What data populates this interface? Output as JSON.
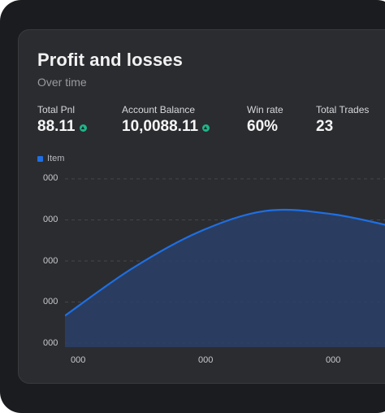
{
  "header": {
    "title": "Profit and losses",
    "subtitle": "Over time"
  },
  "stats": [
    {
      "label": "Total Pnl",
      "value": "88.11",
      "trend": "up-icon"
    },
    {
      "label": "Account Balance",
      "value": "10,0088.11",
      "trend": "up-icon"
    },
    {
      "label": "Win rate",
      "value": "60%"
    },
    {
      "label": "Total Trades",
      "value": "23"
    }
  ],
  "colors": {
    "accent": "#1f6fe3",
    "positive": "#1fb58b",
    "card": "#2b2c30"
  },
  "chart_data": {
    "type": "area",
    "legend": {
      "label": "Item",
      "placement": "top-left"
    },
    "y_ticks": [
      "000",
      "000",
      "000",
      "000",
      "000"
    ],
    "x_ticks": [
      "000",
      "000",
      "000"
    ],
    "grid": true,
    "series": [
      {
        "name": "Item",
        "x": [
          0,
          1,
          2,
          3,
          4,
          5
        ],
        "values": [
          0.18,
          0.45,
          0.66,
          0.78,
          0.76,
          0.68
        ]
      }
    ],
    "xlim": [
      0,
      5
    ],
    "ylim": [
      0,
      1
    ]
  }
}
